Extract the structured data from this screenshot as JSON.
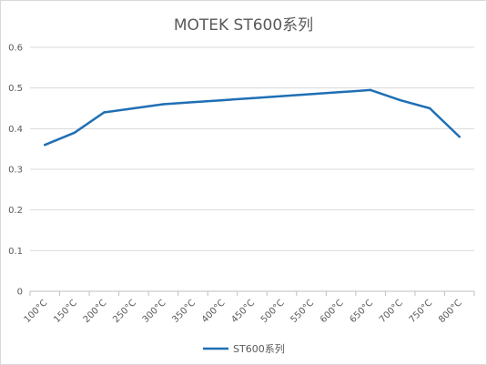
{
  "chart_data": {
    "type": "line",
    "title": "MOTEK  ST600系列",
    "xlabel": "",
    "ylabel": "",
    "categories": [
      "100°C",
      "150°C",
      "200°C",
      "250°C",
      "300°C",
      "350°C",
      "400°C",
      "450°C",
      "500°C",
      "550°C",
      "600°C",
      "650°C",
      "700°C",
      "750°C",
      "800°C"
    ],
    "series": [
      {
        "name": "ST600系列",
        "color": "#1f6fb5",
        "values": [
          0.36,
          0.39,
          0.44,
          0.45,
          0.46,
          0.465,
          0.47,
          0.475,
          0.48,
          0.485,
          0.49,
          0.495,
          0.47,
          0.45,
          0.38
        ]
      }
    ],
    "ylim": [
      0,
      0.6
    ],
    "yticks": [
      0,
      0.1,
      0.2,
      0.3,
      0.4,
      0.5,
      0.6
    ],
    "ytick_labels": [
      "0",
      "0.1",
      "0.2",
      "0.3",
      "0.4",
      "0.5",
      "0.6"
    ],
    "grid": true,
    "legend_position": "bottom"
  }
}
